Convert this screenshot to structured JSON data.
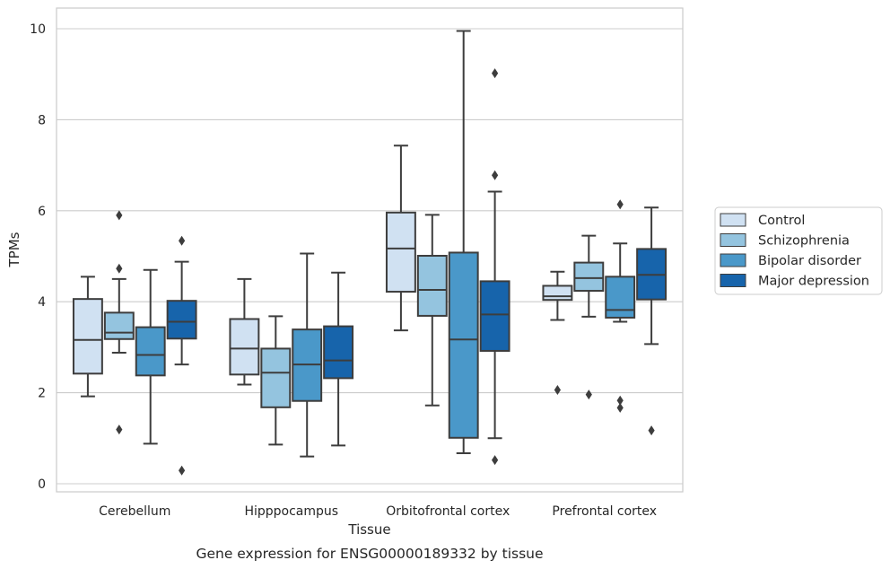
{
  "chart_data": {
    "type": "box",
    "caption": "Gene expression for ENSG00000189332 by tissue",
    "xlabel": "Tissue",
    "ylabel": "TPMs",
    "ylim": [
      -0.2,
      10.45
    ],
    "yticks": [
      0,
      2,
      4,
      6,
      8,
      10
    ],
    "grid": "horizontal",
    "legend_position": "right-center",
    "categories": [
      "Cerebellum",
      "Hipppocampus",
      "Orbitofrontal cortex",
      "Prefrontal cortex"
    ],
    "series": [
      {
        "name": "Control",
        "color": "#d0e1f2",
        "boxes": [
          {
            "whislo": 1.92,
            "q1": 2.42,
            "med": 3.16,
            "q3": 4.06,
            "whishi": 4.55,
            "fliers": []
          },
          {
            "whislo": 2.18,
            "q1": 2.4,
            "med": 2.97,
            "q3": 3.62,
            "whishi": 4.5,
            "fliers": []
          },
          {
            "whislo": 3.37,
            "q1": 4.22,
            "med": 5.17,
            "q3": 5.96,
            "whishi": 7.43,
            "fliers": []
          },
          {
            "whislo": 3.6,
            "q1": 4.04,
            "med": 4.12,
            "q3": 4.35,
            "whishi": 4.66,
            "fliers": [
              2.06
            ]
          }
        ]
      },
      {
        "name": "Schizophrenia",
        "color": "#94c4df",
        "boxes": [
          {
            "whislo": 2.88,
            "q1": 3.18,
            "med": 3.32,
            "q3": 3.76,
            "whishi": 4.5,
            "fliers": [
              5.9,
              4.73,
              1.19
            ]
          },
          {
            "whislo": 0.86,
            "q1": 1.68,
            "med": 2.44,
            "q3": 2.97,
            "whishi": 3.68,
            "fliers": []
          },
          {
            "whislo": 1.72,
            "q1": 3.69,
            "med": 4.26,
            "q3": 5.01,
            "whishi": 5.91,
            "fliers": []
          },
          {
            "whislo": 3.67,
            "q1": 4.24,
            "med": 4.52,
            "q3": 4.86,
            "whishi": 5.45,
            "fliers": [
              1.96
            ]
          }
        ]
      },
      {
        "name": "Bipolar disorder",
        "color": "#4a98c9",
        "boxes": [
          {
            "whislo": 0.88,
            "q1": 2.38,
            "med": 2.83,
            "q3": 3.44,
            "whishi": 4.7,
            "fliers": []
          },
          {
            "whislo": 0.6,
            "q1": 1.82,
            "med": 2.62,
            "q3": 3.39,
            "whishi": 5.06,
            "fliers": []
          },
          {
            "whislo": 0.67,
            "q1": 1.01,
            "med": 3.17,
            "q3": 5.08,
            "whishi": 9.95,
            "fliers": []
          },
          {
            "whislo": 3.56,
            "q1": 3.65,
            "med": 3.82,
            "q3": 4.55,
            "whishi": 5.28,
            "fliers": [
              6.14,
              1.83,
              1.67
            ]
          }
        ]
      },
      {
        "name": "Major depression",
        "color": "#1764ab",
        "boxes": [
          {
            "whislo": 2.62,
            "q1": 3.19,
            "med": 3.56,
            "q3": 4.02,
            "whishi": 4.88,
            "fliers": [
              5.34,
              0.29
            ]
          },
          {
            "whislo": 0.84,
            "q1": 2.32,
            "med": 2.71,
            "q3": 3.46,
            "whishi": 4.64,
            "fliers": []
          },
          {
            "whislo": 1.0,
            "q1": 2.92,
            "med": 3.72,
            "q3": 4.45,
            "whishi": 6.42,
            "fliers": [
              9.02,
              6.78,
              0.52
            ]
          },
          {
            "whislo": 3.07,
            "q1": 4.05,
            "med": 4.59,
            "q3": 5.16,
            "whishi": 6.07,
            "fliers": [
              1.17
            ]
          }
        ]
      }
    ]
  }
}
